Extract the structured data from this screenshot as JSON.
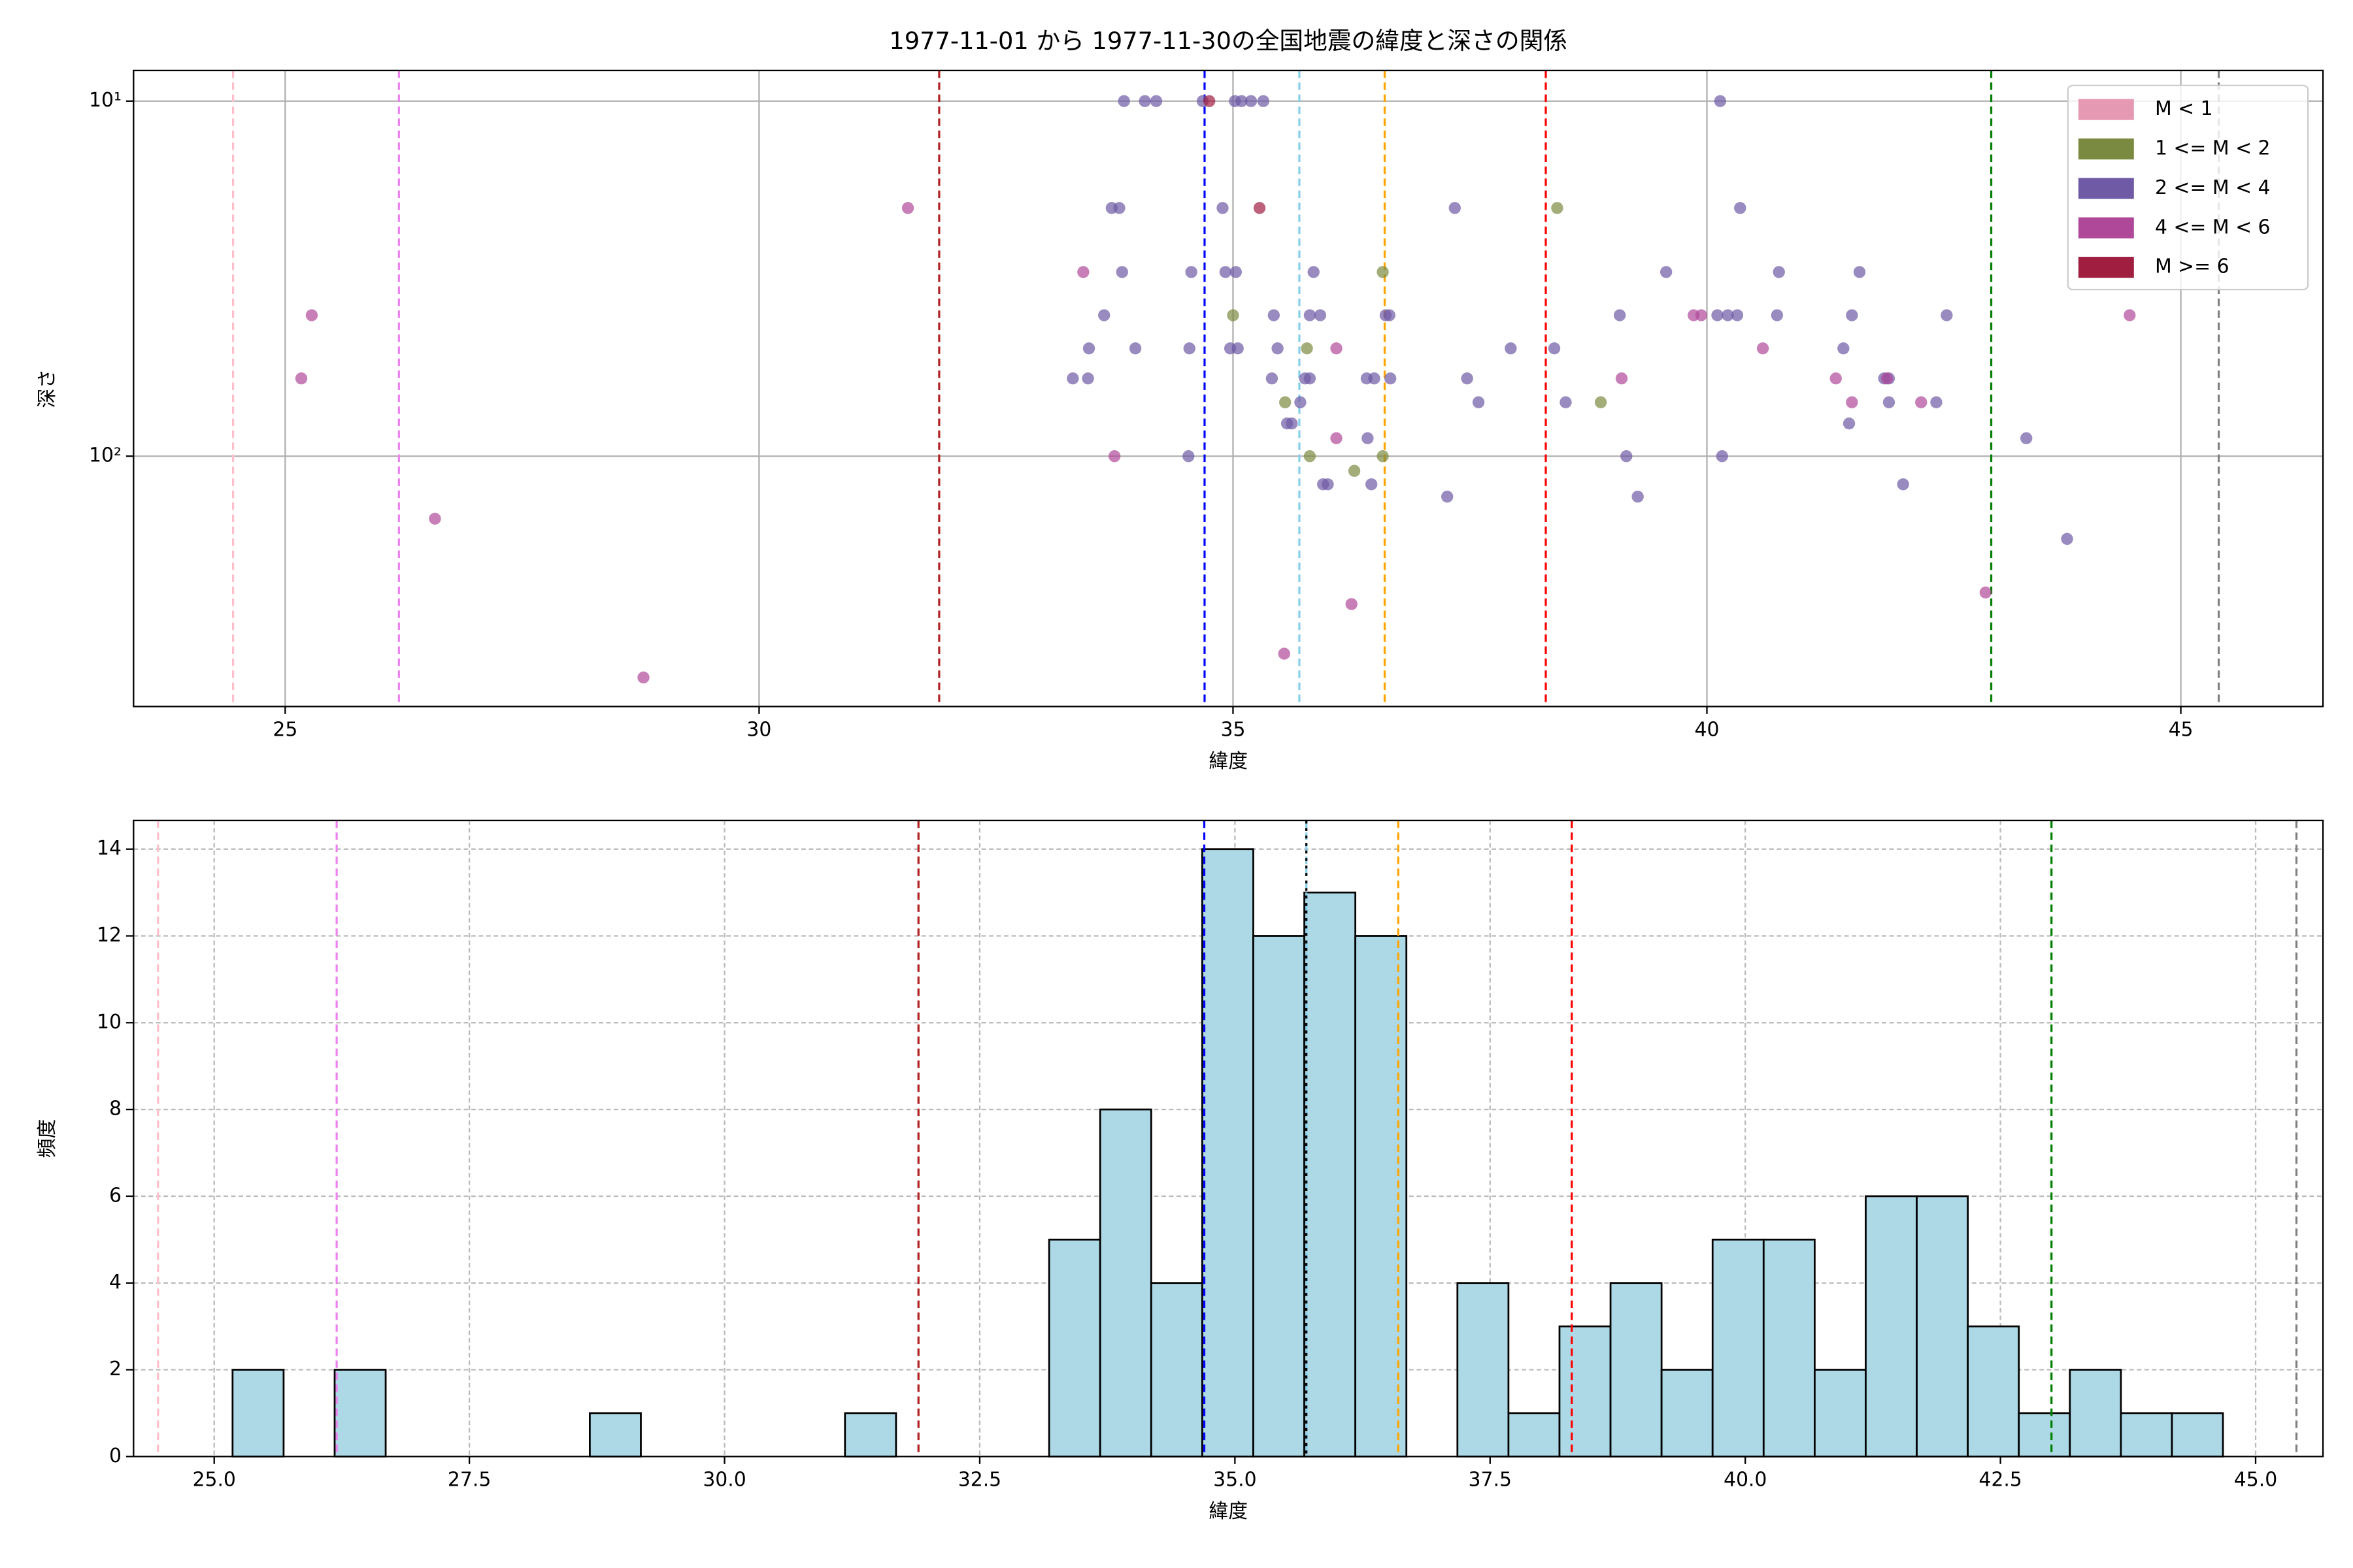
{
  "chart_data": [
    {
      "type": "scatter",
      "title": "1977-11-01 から 1977-11-30の全国地震の緯度と深さの関係",
      "xlabel": "緯度",
      "ylabel": "深さ",
      "xlim": [
        23.4,
        46.5
      ],
      "xticks": [
        25,
        30,
        35,
        40,
        45
      ],
      "ylim": [
        507,
        8.2
      ],
      "ylog": true,
      "yticks": [
        {
          "value": 10,
          "label": "10¹"
        },
        {
          "value": 100,
          "label": "10²"
        }
      ],
      "grid": true,
      "grid_linestyle": "solid",
      "legend": "upper right",
      "vlines": [
        {
          "x": 24.45,
          "color": "pink"
        },
        {
          "x": 26.2,
          "color": "violet"
        },
        {
          "x": 31.9,
          "color": "#b22222"
        },
        {
          "x": 34.7,
          "color": "blue"
        },
        {
          "x": 35.7,
          "color": "skyblue"
        },
        {
          "x": 36.6,
          "color": "orange"
        },
        {
          "x": 38.3,
          "color": "red"
        },
        {
          "x": 43.0,
          "color": "green"
        },
        {
          "x": 45.4,
          "color": "gray"
        }
      ],
      "series": [
        {
          "name": "M < 1",
          "color": "#e699b3",
          "x": [],
          "values": []
        },
        {
          "name": "1 <= M < 2",
          "color": "#7a8a40",
          "x": [
            35.0,
            35.55,
            35.78,
            35.81,
            36.28,
            36.58,
            36.58,
            38.42,
            38.88
          ],
          "values": [
            40.1,
            70.5,
            49.7,
            100,
            110,
            100,
            30.3,
            20,
            70.5
          ]
        },
        {
          "name": "2 <= M < 4",
          "color": "#6e5aa5",
          "x": [
            33.85,
            34.07,
            34.19,
            34.68,
            35.02,
            35.09,
            35.19,
            35.32,
            40.14,
            33.72,
            33.8,
            34.89,
            37.34,
            40.35,
            33.83,
            34.56,
            34.92,
            35.03,
            35.85,
            39.57,
            40.76,
            41.61,
            33.64,
            35.43,
            35.81,
            35.92,
            36.61,
            36.65,
            39.08,
            40.11,
            40.22,
            40.32,
            40.74,
            41.53,
            42.53,
            33.48,
            33.97,
            34.54,
            34.97,
            35.05,
            35.47,
            37.93,
            38.39,
            41.44,
            33.31,
            33.47,
            35.41,
            35.76,
            35.81,
            36.41,
            36.49,
            36.66,
            37.47,
            41.87,
            41.92,
            35.71,
            37.59,
            38.51,
            41.92,
            42.42,
            35.57,
            35.62,
            41.5,
            36.42,
            43.37,
            34.53,
            39.15,
            40.16,
            35.95,
            36.0,
            36.46,
            42.07,
            37.26,
            39.27,
            43.8
          ],
          "values": [
            10,
            10,
            10,
            10,
            10,
            10,
            10,
            10,
            10,
            20,
            20,
            20,
            20,
            20,
            30.3,
            30.3,
            30.3,
            30.3,
            30.3,
            30.3,
            30.3,
            30.3,
            40.1,
            40.1,
            40.1,
            40.1,
            40.1,
            40.1,
            40.1,
            40.1,
            40.1,
            40.1,
            40.1,
            40.1,
            40.1,
            49.7,
            49.7,
            49.7,
            49.7,
            49.7,
            49.7,
            49.7,
            49.7,
            49.7,
            60.4,
            60.4,
            60.4,
            60.4,
            60.4,
            60.4,
            60.4,
            60.4,
            60.4,
            60.4,
            60.4,
            70.5,
            70.5,
            70.5,
            70.5,
            70.5,
            80.9,
            80.9,
            80.9,
            89,
            89,
            100,
            100,
            100,
            120,
            120,
            120,
            120,
            130,
            130,
            171
          ]
        },
        {
          "name": "4 <= M < 6",
          "color": "#b0489a",
          "x": [
            25.28,
            25.17,
            26.58,
            28.78,
            31.57,
            33.42,
            33.75,
            39.86,
            39.94,
            44.46,
            36.09,
            40.59,
            39.1,
            41.36,
            41.9,
            41.53,
            42.26,
            36.09,
            42.94,
            36.25,
            35.54
          ],
          "values": [
            40.1,
            60.4,
            150,
            420,
            20,
            30.3,
            100,
            40.1,
            40.1,
            40.1,
            49.7,
            49.7,
            60.4,
            60.4,
            60.4,
            70.5,
            70.5,
            89,
            242,
            261,
            360
          ]
        },
        {
          "name": "M >= 6",
          "color": "#a01e40",
          "x": [
            34.75,
            35.28
          ],
          "values": [
            10,
            20
          ]
        }
      ]
    },
    {
      "type": "histogram",
      "xlabel": "緯度",
      "ylabel": "頻度",
      "xlim": [
        24.21,
        45.66
      ],
      "xticks": [
        {
          "value": 25,
          "label": "25.0"
        },
        {
          "value": 27.5,
          "label": "27.5"
        },
        {
          "value": 30,
          "label": "30.0"
        },
        {
          "value": 32.5,
          "label": "32.5"
        },
        {
          "value": 35,
          "label": "35.0"
        },
        {
          "value": 37.5,
          "label": "37.5"
        },
        {
          "value": 40,
          "label": "40.0"
        },
        {
          "value": 42.5,
          "label": "42.5"
        },
        {
          "value": 45,
          "label": "45.0"
        }
      ],
      "ylim": [
        0,
        14.66
      ],
      "yticks": [
        0,
        2,
        4,
        6,
        8,
        10,
        12,
        14
      ],
      "grid": true,
      "grid_linestyle": "dashed",
      "color": "#add8e6",
      "edgecolor": "#000000",
      "bins": [
        25.18,
        25.68,
        26.18,
        26.68,
        27.18,
        27.68,
        28.18,
        28.68,
        29.18,
        29.68,
        30.18,
        30.68,
        31.18,
        31.68,
        32.18,
        32.68,
        33.18,
        33.68,
        34.18,
        34.68,
        35.18,
        35.68,
        36.18,
        36.68,
        37.18,
        37.68,
        38.18,
        38.68,
        39.18,
        39.68,
        40.18,
        40.68,
        41.18,
        41.68,
        42.18,
        42.68,
        43.18,
        43.68,
        44.18,
        44.68
      ],
      "values": [
        2,
        0,
        2,
        0,
        0,
        0,
        0,
        1,
        0,
        0,
        0,
        0,
        1,
        0,
        0,
        0,
        5,
        8,
        4,
        14,
        12,
        13,
        12,
        0,
        4,
        1,
        3,
        4,
        2,
        5,
        5,
        2,
        6,
        6,
        3,
        1,
        2,
        1,
        1
      ],
      "vlines": [
        {
          "x": 24.45,
          "color": "pink"
        },
        {
          "x": 26.2,
          "color": "violet"
        },
        {
          "x": 31.9,
          "color": "#b22222"
        },
        {
          "x": 34.7,
          "color": "blue"
        },
        {
          "x": 35.7,
          "color": "skyblue"
        },
        {
          "x": 35.7,
          "color": "black",
          "linestyle": "dotted"
        },
        {
          "x": 36.6,
          "color": "orange"
        },
        {
          "x": 38.3,
          "color": "red"
        },
        {
          "x": 43.0,
          "color": "green"
        },
        {
          "x": 45.4,
          "color": "gray"
        }
      ]
    }
  ]
}
